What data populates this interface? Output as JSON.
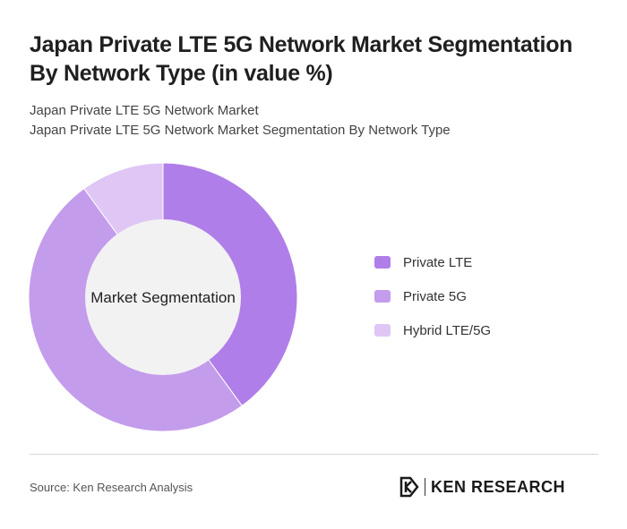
{
  "header": {
    "title": "Japan Private LTE 5G Network Market Segmentation By Network Type (in value %)",
    "subtitle_line1": "Japan Private LTE 5G Network Market",
    "subtitle_line2": "Japan Private LTE 5G Network Market Segmentation By Network Type"
  },
  "chart_data": {
    "type": "pie",
    "center_label": "Market Segmentation",
    "categories": [
      "Private LTE",
      "Private 5G",
      "Hybrid LTE/5G"
    ],
    "values": [
      40,
      50,
      10
    ],
    "colors": [
      "#b07ee8",
      "#c39cec",
      "#dfc6f5"
    ],
    "legend_position": "right"
  },
  "footer": {
    "source": "Source: Ken Research Analysis",
    "brand": "KEN RESEARCH"
  },
  "colors": {
    "donut_hole": "#f2f2f2",
    "divider": "#d8d8d8"
  }
}
